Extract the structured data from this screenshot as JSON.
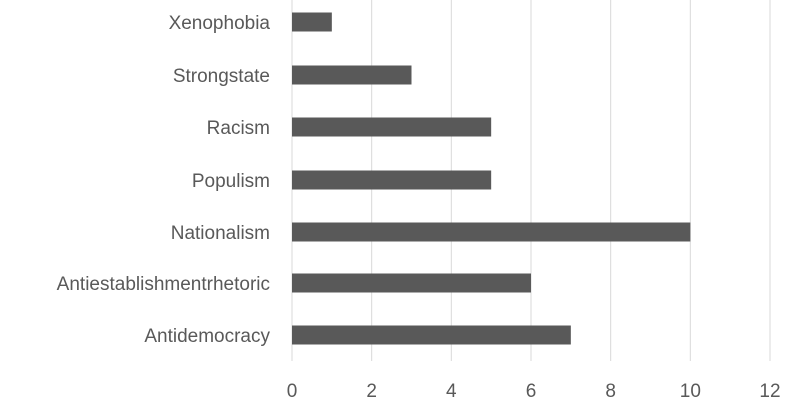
{
  "chart_data": {
    "type": "bar",
    "orientation": "horizontal",
    "title": "",
    "xlabel": "",
    "ylabel": "",
    "categories": [
      "Xenophobia",
      "Strongstate",
      "Racism",
      "Populism",
      "Nationalism",
      "Antiestablishmentrhetoric",
      "Antidemocracy"
    ],
    "values": [
      1,
      3,
      5,
      5,
      10,
      6,
      7
    ],
    "xlim": [
      0,
      12
    ],
    "xticks": [
      "0",
      "2",
      "4",
      "6",
      "8",
      "10",
      "12"
    ],
    "grid": "vertical",
    "legend": "none",
    "colors": {
      "bar": "#595959",
      "grid": "#d9d9d9",
      "text": "#595959"
    }
  }
}
